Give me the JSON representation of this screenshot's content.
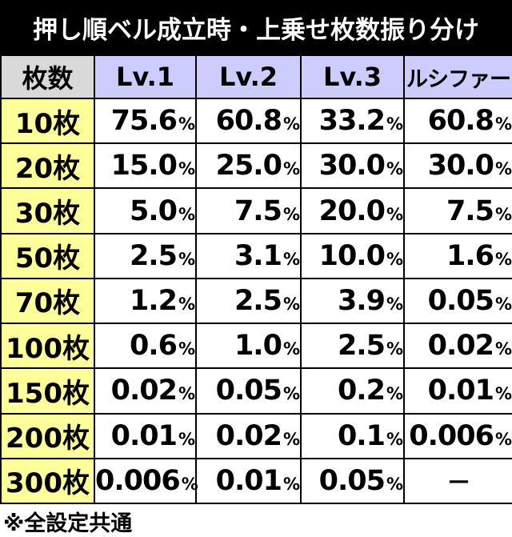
{
  "title": "押し順ベル成立時・上乗せ枚数振り分け",
  "table": {
    "headers": [
      "枚数",
      "Lv.1",
      "Lv.2",
      "Lv.3",
      "ルシファー"
    ],
    "unit": "%",
    "rows": [
      {
        "label": "10枚",
        "values": [
          "75.6",
          "60.8",
          "33.2",
          "60.8"
        ]
      },
      {
        "label": "20枚",
        "values": [
          "15.0",
          "25.0",
          "30.0",
          "30.0"
        ]
      },
      {
        "label": "30枚",
        "values": [
          "5.0",
          "7.5",
          "20.0",
          "7.5"
        ]
      },
      {
        "label": "50枚",
        "values": [
          "2.5",
          "3.1",
          "10.0",
          "1.6"
        ]
      },
      {
        "label": "70枚",
        "values": [
          "1.2",
          "2.5",
          "3.9",
          "0.05"
        ]
      },
      {
        "label": "100枚",
        "values": [
          "0.6",
          "1.0",
          "2.5",
          "0.02"
        ]
      },
      {
        "label": "150枚",
        "values": [
          "0.02",
          "0.05",
          "0.2",
          "0.01"
        ]
      },
      {
        "label": "200枚",
        "values": [
          "0.01",
          "0.02",
          "0.1",
          "0.006"
        ]
      },
      {
        "label": "300枚",
        "values": [
          "0.006",
          "0.01",
          "0.05",
          "—"
        ]
      }
    ]
  },
  "note": "※全設定共通",
  "colors": {
    "title_bg": "#000000",
    "header_bg": "#ccccff",
    "corner_bg": "#d9d9d9",
    "rowhead_bg": "#ffff99"
  }
}
